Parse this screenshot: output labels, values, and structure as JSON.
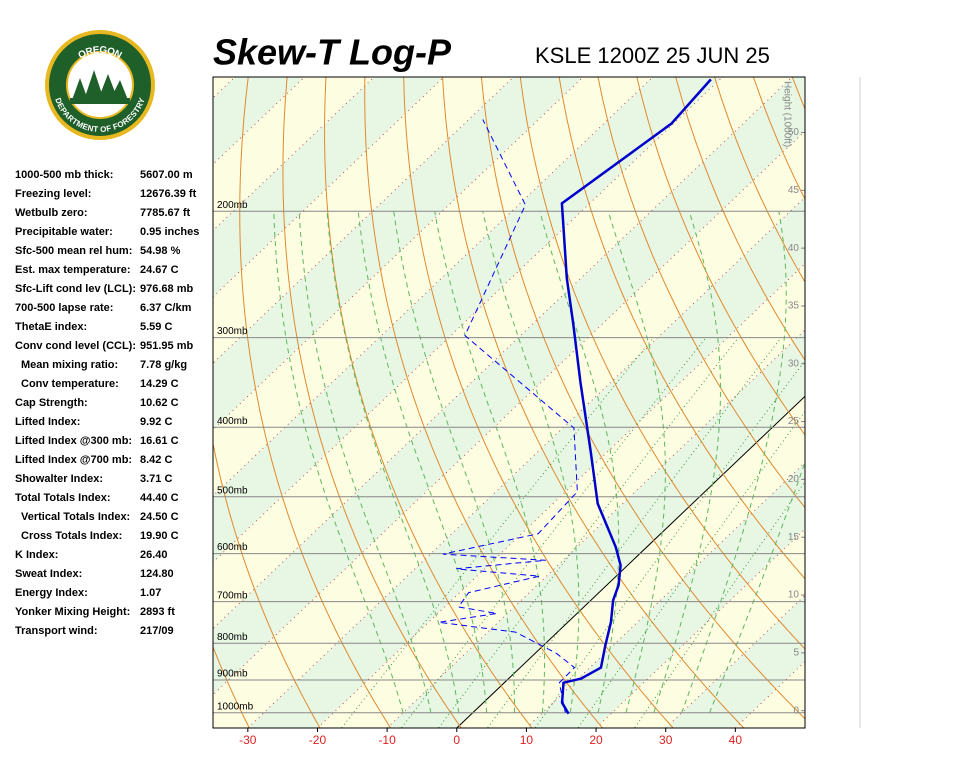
{
  "logo": {
    "top": "OREGON",
    "bottom": "DEPARTMENT OF FORESTRY"
  },
  "indices": [
    [
      "1000-500 mb thick:",
      "5607.00 m"
    ],
    [
      "Freezing level:",
      "12676.39 ft"
    ],
    [
      "Wetbulb zero:",
      "7785.67 ft"
    ],
    [
      "Precipitable water:",
      "0.95 inches"
    ],
    [
      "Sfc-500 mean rel hum:",
      "54.98 %"
    ],
    [
      "Est. max temperature:",
      "24.67 C"
    ],
    [
      "Sfc-Lift cond lev (LCL):",
      "976.68 mb"
    ],
    [
      "700-500 lapse rate:",
      "6.37 C/km"
    ],
    [
      "ThetaE index:",
      "5.59 C"
    ],
    [
      "Conv cond level (CCL):",
      "951.95 mb"
    ],
    [
      "Mean mixing ratio:",
      "7.78 g/kg"
    ],
    [
      "Conv temperature:",
      "14.29 C"
    ],
    [
      "Cap Strength:",
      "10.62 C"
    ],
    [
      "Lifted Index:",
      "9.92 C"
    ],
    [
      "Lifted Index @300 mb:",
      "16.61 C"
    ],
    [
      "Lifted Index @700 mb:",
      "8.42 C"
    ],
    [
      "Showalter Index:",
      "3.71 C"
    ],
    [
      "Total Totals Index:",
      "44.40 C"
    ],
    [
      "Vertical Totals Index:",
      "24.50 C"
    ],
    [
      "Cross Totals Index:",
      "19.90 C"
    ],
    [
      "K Index:",
      "26.40"
    ],
    [
      "Sweat Index:",
      "124.80"
    ],
    [
      "Energy Index:",
      "1.07"
    ],
    [
      "Yonker Mixing Height:",
      "2893 ft"
    ],
    [
      "Transport wind:",
      "217/09"
    ]
  ],
  "chart_data": {
    "type": "skewt",
    "title": "Skew-T Log-P",
    "subtitle": "KSLE 1200Z 25 JUN 25",
    "xlim": [
      -35,
      50
    ],
    "xticks": [
      -30,
      -20,
      -10,
      0,
      10,
      20,
      30,
      40
    ],
    "ylim": [
      1050,
      130
    ],
    "yticks": [
      {
        "value": 200,
        "label": "200mb"
      },
      {
        "value": 300,
        "label": "300mb"
      },
      {
        "value": 400,
        "label": "400mb"
      },
      {
        "value": 500,
        "label": "500mb"
      },
      {
        "value": 600,
        "label": "600mb"
      },
      {
        "value": 700,
        "label": "700mb"
      },
      {
        "value": 800,
        "label": "800mb"
      },
      {
        "value": 900,
        "label": "900mb"
      },
      {
        "value": 1000,
        "label": "1000mb"
      }
    ],
    "y2label": "Height (1000ft)",
    "y2lim": [
      -1.5,
      54.8
    ],
    "y2ticks": [
      0,
      5,
      10,
      15,
      20,
      25,
      30,
      35,
      40,
      45,
      50
    ],
    "series": [
      {
        "color": "#0000cc",
        "dash": false,
        "x": [
          13.9,
          11.3,
          8.5,
          10.4,
          11.6,
          8.9,
          6.2,
          3.2,
          1.7,
          -1.0,
          -4.4,
          -13.6,
          -22.5,
          -34.4,
          -44.4,
          -52,
          -64,
          -60.3,
          -61.3
        ],
        "y": [
          1003,
          968,
          908,
          896,
          865,
          806,
          748,
          697,
          664,
          623,
          588,
          511,
          432,
          346,
          286,
          248,
          195,
          151,
          131
        ]
      },
      {
        "color": "#0000ff",
        "dash": true,
        "x": [
          13.3,
          7.9,
          7.8,
          3.0,
          -6.0,
          -18.5,
          -11.5,
          -18.0,
          -18.7,
          -11.0,
          -24.1,
          -12.5,
          -28.2,
          -17.6,
          -18.3,
          -28.4,
          -33.5,
          -58,
          -69,
          -88
        ],
        "y": [
          1000,
          908,
          865,
          826,
          772,
          748,
          727,
          712,
          680,
          645,
          630,
          613,
          601,
          563,
          492,
          401,
          381,
          298,
          196,
          149
        ]
      }
    ]
  }
}
